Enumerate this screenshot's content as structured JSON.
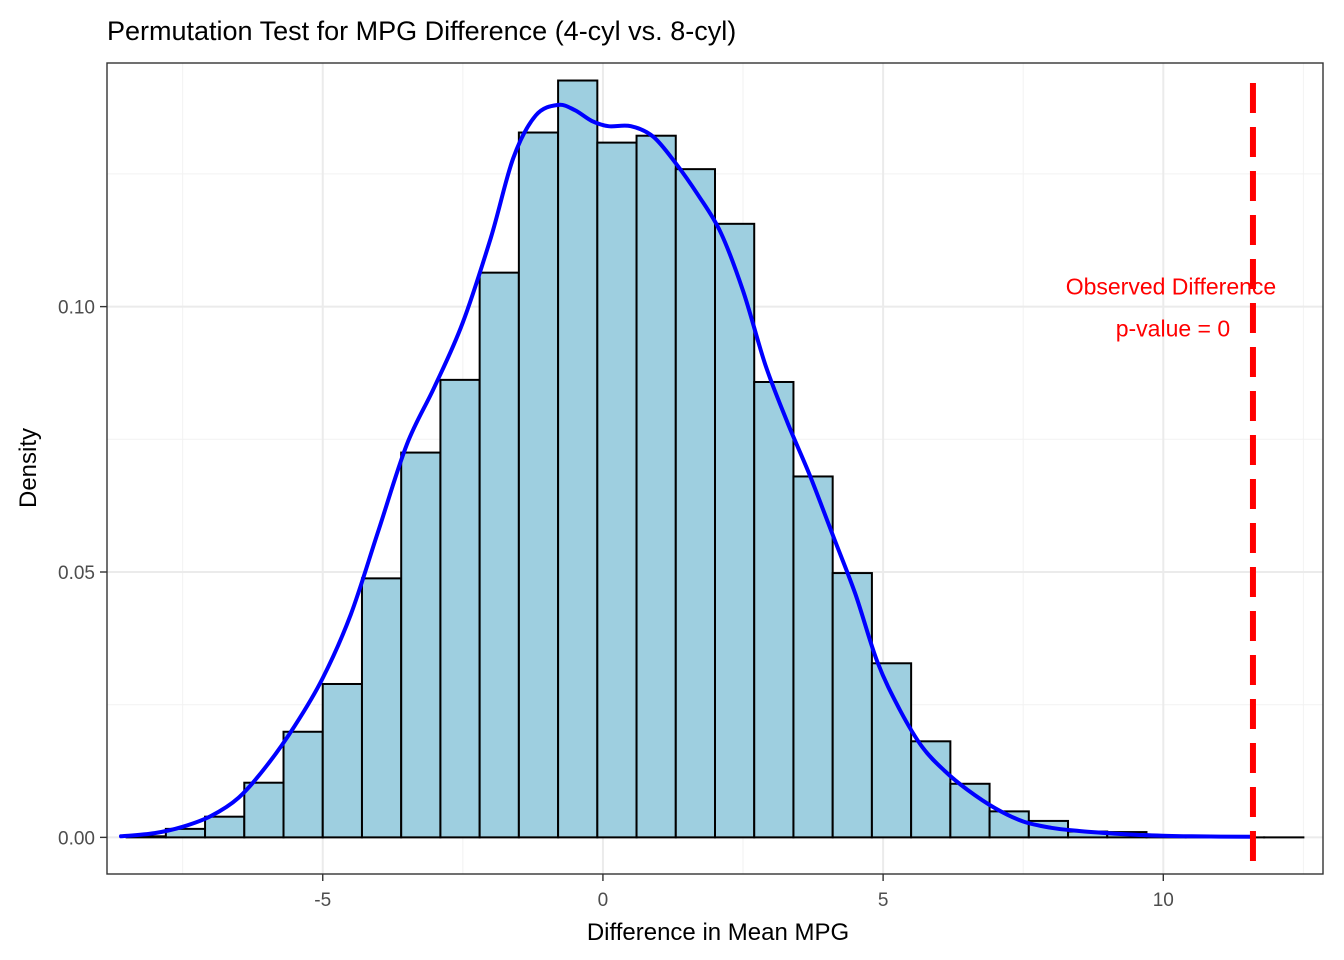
{
  "chart_data": {
    "type": "bar",
    "title": "Permutation Test for MPG Difference (4-cyl vs. 8-cyl)",
    "xlabel": "Difference in Mean MPG",
    "ylabel": "Density",
    "xlim": [
      -8.85,
      12.85
    ],
    "ylim": [
      -0.0069,
      0.1459
    ],
    "x_ticks": [
      -5,
      0,
      5,
      10
    ],
    "x_tick_labels": [
      "-5",
      "0",
      "5",
      "10"
    ],
    "y_ticks": [
      0.0,
      0.05,
      0.1
    ],
    "y_tick_labels": [
      "0.00",
      "0.05",
      "0.10"
    ],
    "grid": true,
    "histogram": {
      "bin_width": 0.7,
      "bins": [
        {
          "x0": -8.5,
          "x1": -7.8,
          "density": 0.0002
        },
        {
          "x0": -7.8,
          "x1": -7.1,
          "density": 0.0016
        },
        {
          "x0": -7.1,
          "x1": -6.4,
          "density": 0.0039
        },
        {
          "x0": -6.4,
          "x1": -5.7,
          "density": 0.0103
        },
        {
          "x0": -5.7,
          "x1": -5.0,
          "density": 0.0199
        },
        {
          "x0": -5.0,
          "x1": -4.3,
          "density": 0.0289
        },
        {
          "x0": -4.3,
          "x1": -3.6,
          "density": 0.0488
        },
        {
          "x0": -3.6,
          "x1": -2.9,
          "density": 0.0725
        },
        {
          "x0": -2.9,
          "x1": -2.2,
          "density": 0.0862
        },
        {
          "x0": -2.2,
          "x1": -1.5,
          "density": 0.1064
        },
        {
          "x0": -1.5,
          "x1": -0.8,
          "density": 0.1328
        },
        {
          "x0": -0.8,
          "x1": -0.1,
          "density": 0.1426
        },
        {
          "x0": -0.1,
          "x1": 0.6,
          "density": 0.1309
        },
        {
          "x0": 0.6,
          "x1": 1.3,
          "density": 0.1322
        },
        {
          "x0": 1.3,
          "x1": 2.0,
          "density": 0.1259
        },
        {
          "x0": 2.0,
          "x1": 2.7,
          "density": 0.1156
        },
        {
          "x0": 2.7,
          "x1": 3.4,
          "density": 0.0858
        },
        {
          "x0": 3.4,
          "x1": 4.1,
          "density": 0.068
        },
        {
          "x0": 4.1,
          "x1": 4.8,
          "density": 0.0498
        },
        {
          "x0": 4.8,
          "x1": 5.5,
          "density": 0.0328
        },
        {
          "x0": 5.5,
          "x1": 6.2,
          "density": 0.0181
        },
        {
          "x0": 6.2,
          "x1": 6.9,
          "density": 0.0101
        },
        {
          "x0": 6.9,
          "x1": 7.6,
          "density": 0.0049
        },
        {
          "x0": 7.6,
          "x1": 8.3,
          "density": 0.0031
        },
        {
          "x0": 8.3,
          "x1": 9.0,
          "density": 0.0011
        },
        {
          "x0": 9.0,
          "x1": 9.7,
          "density": 0.001
        },
        {
          "x0": 9.7,
          "x1": 10.4,
          "density": 0.0
        },
        {
          "x0": 10.4,
          "x1": 11.1,
          "density": 0.0
        },
        {
          "x0": 11.1,
          "x1": 11.8,
          "density": 0.0
        },
        {
          "x0": 11.8,
          "x1": 12.5,
          "density": 0.0
        }
      ],
      "fill": "#9ecfe0",
      "stroke": "#000000"
    },
    "density_curve": {
      "color": "#0000ff",
      "points": [
        [
          -8.6,
          0.0002
        ],
        [
          -8.0,
          0.0008
        ],
        [
          -7.5,
          0.002
        ],
        [
          -7.0,
          0.004
        ],
        [
          -6.5,
          0.0075
        ],
        [
          -6.0,
          0.0135
        ],
        [
          -5.5,
          0.021
        ],
        [
          -5.0,
          0.03
        ],
        [
          -4.5,
          0.042
        ],
        [
          -4.0,
          0.058
        ],
        [
          -3.5,
          0.074
        ],
        [
          -3.0,
          0.085
        ],
        [
          -2.5,
          0.097
        ],
        [
          -2.0,
          0.113
        ],
        [
          -1.6,
          0.128
        ],
        [
          -1.2,
          0.136
        ],
        [
          -0.8,
          0.138
        ],
        [
          -0.5,
          0.137
        ],
        [
          -0.2,
          0.135
        ],
        [
          0.1,
          0.134
        ],
        [
          0.5,
          0.134
        ],
        [
          0.9,
          0.132
        ],
        [
          1.3,
          0.127
        ],
        [
          1.7,
          0.121
        ],
        [
          2.1,
          0.114
        ],
        [
          2.5,
          0.103
        ],
        [
          2.9,
          0.089
        ],
        [
          3.3,
          0.078
        ],
        [
          3.7,
          0.068
        ],
        [
          4.1,
          0.057
        ],
        [
          4.5,
          0.046
        ],
        [
          4.9,
          0.033
        ],
        [
          5.3,
          0.024
        ],
        [
          5.7,
          0.017
        ],
        [
          6.1,
          0.0125
        ],
        [
          6.5,
          0.009
        ],
        [
          7.0,
          0.0055
        ],
        [
          7.5,
          0.003
        ],
        [
          8.0,
          0.0018
        ],
        [
          8.5,
          0.0012
        ],
        [
          9.0,
          0.0008
        ],
        [
          9.5,
          0.0005
        ],
        [
          10.0,
          0.0003
        ],
        [
          10.5,
          0.0002
        ],
        [
          11.6,
          0.0001
        ]
      ]
    },
    "observed_difference": {
      "x": 11.6,
      "color": "#ff0000",
      "label_line1": "Observed Difference",
      "label_line2": "p-value = 0"
    }
  }
}
